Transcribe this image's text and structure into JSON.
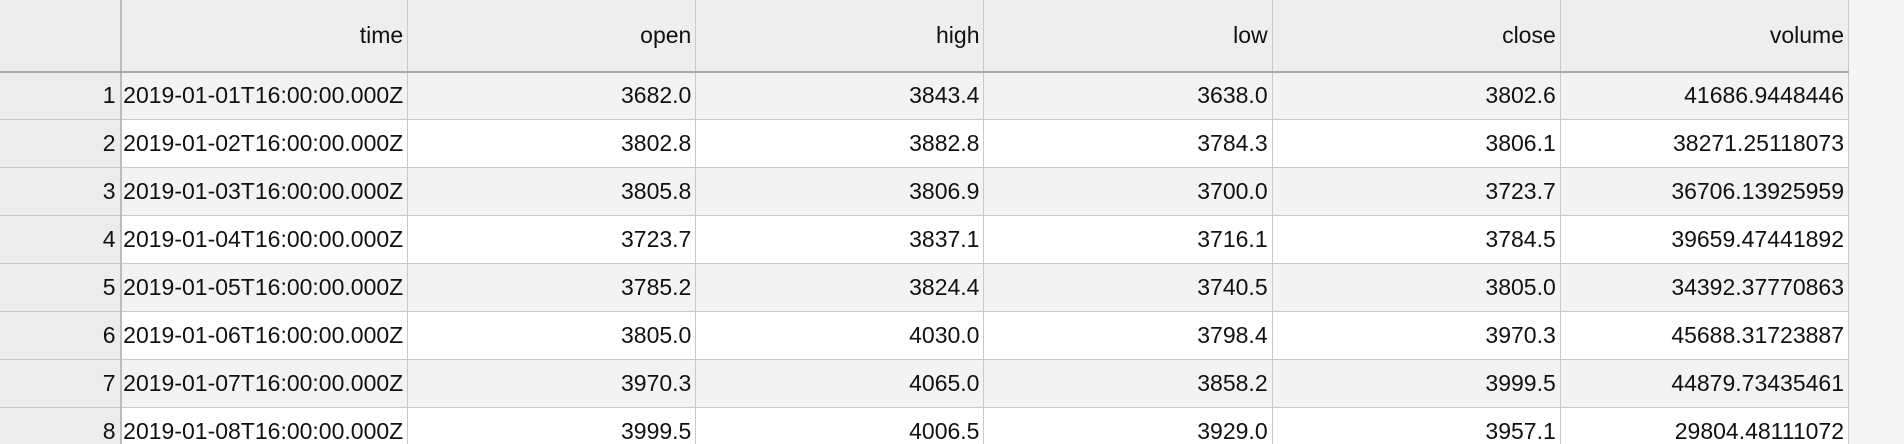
{
  "table": {
    "columns": [
      "time",
      "open",
      "high",
      "low",
      "close",
      "volume"
    ],
    "rows": [
      {
        "index": "1",
        "time": "2019-01-01T16:00:00.000Z",
        "open": "3682.0",
        "high": "3843.4",
        "low": "3638.0",
        "close": "3802.6",
        "volume": "41686.9448446"
      },
      {
        "index": "2",
        "time": "2019-01-02T16:00:00.000Z",
        "open": "3802.8",
        "high": "3882.8",
        "low": "3784.3",
        "close": "3806.1",
        "volume": "38271.25118073"
      },
      {
        "index": "3",
        "time": "2019-01-03T16:00:00.000Z",
        "open": "3805.8",
        "high": "3806.9",
        "low": "3700.0",
        "close": "3723.7",
        "volume": "36706.13925959"
      },
      {
        "index": "4",
        "time": "2019-01-04T16:00:00.000Z",
        "open": "3723.7",
        "high": "3837.1",
        "low": "3716.1",
        "close": "3784.5",
        "volume": "39659.47441892"
      },
      {
        "index": "5",
        "time": "2019-01-05T16:00:00.000Z",
        "open": "3785.2",
        "high": "3824.4",
        "low": "3740.5",
        "close": "3805.0",
        "volume": "34392.37770863"
      },
      {
        "index": "6",
        "time": "2019-01-06T16:00:00.000Z",
        "open": "3805.0",
        "high": "4030.0",
        "low": "3798.4",
        "close": "3970.3",
        "volume": "45688.31723887"
      },
      {
        "index": "7",
        "time": "2019-01-07T16:00:00.000Z",
        "open": "3970.3",
        "high": "4065.0",
        "low": "3858.2",
        "close": "3999.5",
        "volume": "44879.73435461"
      },
      {
        "index": "8",
        "time": "2019-01-08T16:00:00.000Z",
        "open": "3999.5",
        "high": "4006.5",
        "low": "3929.0",
        "close": "3957.1",
        "volume": "29804.48111072"
      }
    ]
  }
}
